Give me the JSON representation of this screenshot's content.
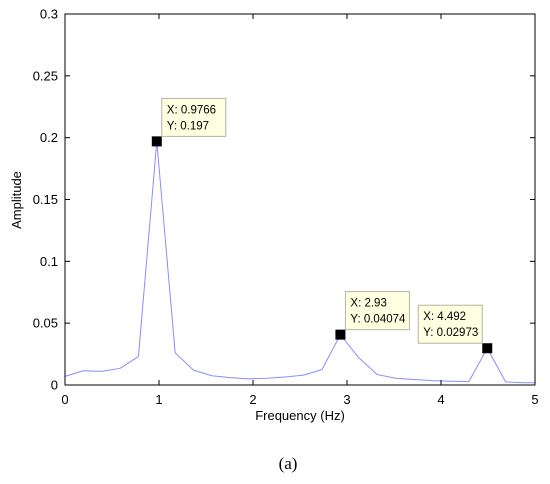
{
  "chart_data": {
    "type": "line",
    "xlabel": "Frequency (Hz)",
    "ylabel": "Amplitude",
    "xlim": [
      0,
      5
    ],
    "ylim": [
      0,
      0.3
    ],
    "x_ticks": [
      0,
      1,
      2,
      3,
      4,
      5
    ],
    "x_tick_labels": [
      "0",
      "1",
      "2",
      "3",
      "4",
      "5"
    ],
    "y_ticks": [
      0,
      0.05,
      0.1,
      0.15,
      0.2,
      0.25,
      0.3
    ],
    "y_tick_labels": [
      "0",
      "0.05",
      "0.1",
      "0.15",
      "0.2",
      "0.25",
      "0.3"
    ],
    "grid": false,
    "series": [
      {
        "color": "#8c8cff",
        "x": [
          0,
          0.1953,
          0.3906,
          0.5859,
          0.7813,
          0.9766,
          1.1719,
          1.3672,
          1.5625,
          1.7578,
          1.9531,
          2.1484,
          2.3438,
          2.5391,
          2.7344,
          2.9297,
          3.125,
          3.3203,
          3.5156,
          3.7109,
          3.9063,
          4.1016,
          4.2969,
          4.4922,
          4.6875,
          4.8828,
          5.0
        ],
        "y": [
          0.007,
          0.0115,
          0.011,
          0.0135,
          0.023,
          0.197,
          0.026,
          0.012,
          0.0075,
          0.006,
          0.005,
          0.0055,
          0.0065,
          0.008,
          0.0125,
          0.0407,
          0.022,
          0.0085,
          0.0055,
          0.0045,
          0.0035,
          0.003,
          0.0028,
          0.0297,
          0.0025,
          0.0018,
          0.0018
        ]
      }
    ],
    "datatips": [
      {
        "x": 0.9766,
        "y": 0.197,
        "x_text": "X: 0.9766",
        "y_text": "Y: 0.197",
        "placement": "right"
      },
      {
        "x": 2.93,
        "y": 0.04074,
        "x_text": "X: 2.93",
        "y_text": "Y: 0.04074",
        "placement": "right"
      },
      {
        "x": 4.492,
        "y": 0.02973,
        "x_text": "X: 4.492",
        "y_text": "Y: 0.02973",
        "placement": "left"
      }
    ],
    "caption": "(a)"
  }
}
